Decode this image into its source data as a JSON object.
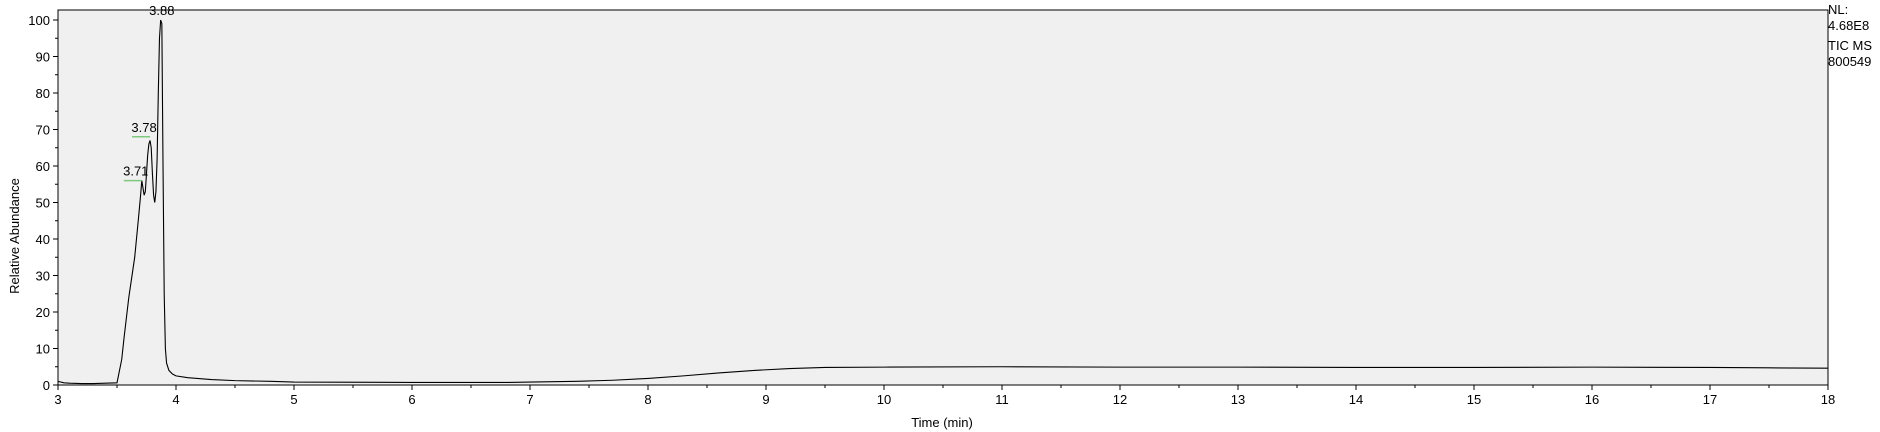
{
  "chart_data": {
    "type": "line",
    "xlabel": "Time (min)",
    "ylabel": "Relative Abundance",
    "xlim": [
      3,
      18
    ],
    "ylim": [
      0,
      100
    ],
    "x_ticks": [
      3,
      4,
      5,
      6,
      7,
      8,
      9,
      10,
      11,
      12,
      13,
      14,
      15,
      16,
      17,
      18
    ],
    "y_ticks": [
      0,
      10,
      20,
      30,
      40,
      50,
      60,
      70,
      80,
      90,
      100
    ],
    "grid": false,
    "background_color": "#f0f0f0",
    "line_color": "#000000",
    "label_marker_color": "#7fc97f",
    "peak_labels": [
      {
        "text": "3.71",
        "x": 3.71,
        "y": 56
      },
      {
        "text": "3.78",
        "x": 3.78,
        "y": 68
      },
      {
        "text": "3.88",
        "x": 3.88,
        "y": 100
      }
    ],
    "series": [
      {
        "x": [
          3.0,
          3.05,
          3.1,
          3.2,
          3.3,
          3.4,
          3.5,
          3.54,
          3.56,
          3.6,
          3.65,
          3.68,
          3.7,
          3.71,
          3.72,
          3.73,
          3.74,
          3.75,
          3.76,
          3.77,
          3.78,
          3.79,
          3.8,
          3.81,
          3.82,
          3.83,
          3.84,
          3.85,
          3.86,
          3.87,
          3.88,
          3.89,
          3.9,
          3.91,
          3.92,
          3.94,
          3.97,
          4.0,
          4.1,
          4.3,
          4.5,
          4.8,
          5.0,
          6.0,
          6.8,
          7.0,
          7.4,
          7.7,
          8.0,
          8.3,
          8.6,
          8.9,
          9.2,
          9.5,
          10.0,
          11.0,
          12.0,
          13.0,
          14.0,
          15.0,
          16.0,
          17.0,
          17.5,
          18.0
        ],
        "y": [
          1.0,
          0.6,
          0.5,
          0.4,
          0.4,
          0.5,
          0.6,
          7.0,
          13.0,
          24.0,
          35.0,
          45.0,
          52.0,
          56.0,
          54.0,
          52.0,
          53.0,
          58.0,
          63.0,
          66.0,
          67.0,
          65.0,
          58.0,
          52.0,
          50.0,
          53.0,
          62.0,
          80.0,
          95.0,
          100.0,
          99.0,
          60.0,
          25.0,
          10.0,
          6.0,
          4.0,
          3.0,
          2.5,
          2.0,
          1.5,
          1.2,
          1.0,
          0.8,
          0.7,
          0.7,
          0.8,
          1.0,
          1.3,
          1.8,
          2.5,
          3.3,
          4.0,
          4.5,
          4.8,
          4.9,
          5.0,
          4.9,
          4.9,
          4.8,
          4.8,
          4.9,
          4.8,
          4.7,
          4.6
        ]
      }
    ]
  },
  "info": {
    "nl_label": "NL:",
    "nl_value": "4.68E8",
    "scan_filter": "TIC  MS",
    "sample_id": "800549"
  }
}
